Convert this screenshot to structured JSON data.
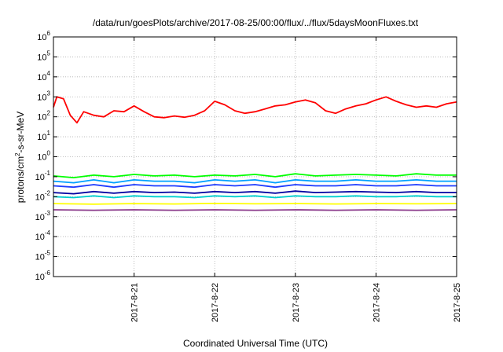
{
  "chart_data": {
    "type": "line",
    "title": "/data/run/goesPlots/archive/2017-08-25/00:00/flux/../flux/5daysMoonFluxes.txt",
    "xlabel": "Coordinated Universal Time (UTC)",
    "ylabel": {
      "prefix": "protons/cm",
      "superscript": "2",
      "suffix": "-s-sr-MeV"
    },
    "y_scale": "log",
    "y_range": [
      1e-06,
      1000000.0
    ],
    "y_ticks": [
      {
        "base": "10",
        "exp": "-6",
        "value": 1e-06
      },
      {
        "base": "10",
        "exp": "-5",
        "value": 1e-05
      },
      {
        "base": "10",
        "exp": "-4",
        "value": 0.0001
      },
      {
        "base": "10",
        "exp": "-3",
        "value": 0.001
      },
      {
        "base": "10",
        "exp": "-2",
        "value": 0.01
      },
      {
        "base": "10",
        "exp": "-1",
        "value": 0.1
      },
      {
        "base": "10",
        "exp": "0",
        "value": 1
      },
      {
        "base": "10",
        "exp": "1",
        "value": 10
      },
      {
        "base": "10",
        "exp": "2",
        "value": 100
      },
      {
        "base": "10",
        "exp": "3",
        "value": 1000
      },
      {
        "base": "10",
        "exp": "4",
        "value": 10000
      },
      {
        "base": "10",
        "exp": "5",
        "value": 100000
      },
      {
        "base": "10",
        "exp": "6",
        "value": 1000000
      }
    ],
    "x_range": [
      "2017-08-20",
      "2017-08-25"
    ],
    "x_ticks": [
      "2017-8-21",
      "2017-8-22",
      "2017-8-23",
      "2017-8-24",
      "2017-8-25"
    ],
    "x_tick_dates": [
      "2017-08-21",
      "2017-08-22",
      "2017-08-23",
      "2017-08-24",
      "2017-08-25"
    ],
    "grid": true,
    "series": [
      {
        "color": "#ff0000",
        "x": [
          "2017-08-20 00:00",
          "2017-08-20 01:00",
          "2017-08-20 03:00",
          "2017-08-20 05:00",
          "2017-08-20 07:00",
          "2017-08-20 09:00",
          "2017-08-20 12:00",
          "2017-08-20 15:00",
          "2017-08-20 18:00",
          "2017-08-20 21:00",
          "2017-08-21 00:00",
          "2017-08-21 03:00",
          "2017-08-21 06:00",
          "2017-08-21 09:00",
          "2017-08-21 12:00",
          "2017-08-21 15:00",
          "2017-08-21 18:00",
          "2017-08-21 21:00",
          "2017-08-22 00:00",
          "2017-08-22 03:00",
          "2017-08-22 06:00",
          "2017-08-22 09:00",
          "2017-08-22 12:00",
          "2017-08-22 15:00",
          "2017-08-22 18:00",
          "2017-08-22 21:00",
          "2017-08-23 00:00",
          "2017-08-23 03:00",
          "2017-08-23 06:00",
          "2017-08-23 09:00",
          "2017-08-23 12:00",
          "2017-08-23 15:00",
          "2017-08-23 18:00",
          "2017-08-23 21:00",
          "2017-08-24 00:00",
          "2017-08-24 03:00",
          "2017-08-24 06:00",
          "2017-08-24 09:00",
          "2017-08-24 12:00",
          "2017-08-24 15:00",
          "2017-08-24 18:00",
          "2017-08-24 21:00",
          "2017-08-25 00:00"
        ],
        "y": [
          300,
          1000,
          800,
          120,
          50,
          180,
          120,
          100,
          200,
          180,
          350,
          180,
          100,
          90,
          110,
          95,
          120,
          200,
          600,
          400,
          200,
          150,
          180,
          250,
          350,
          400,
          550,
          700,
          500,
          200,
          150,
          250,
          350,
          450,
          700,
          1000,
          600,
          400,
          300,
          350,
          300,
          450,
          550
        ]
      },
      {
        "color": "#00ff00",
        "x": [
          "2017-08-20 00:00",
          "2017-08-20 06:00",
          "2017-08-20 12:00",
          "2017-08-20 18:00",
          "2017-08-21 00:00",
          "2017-08-21 06:00",
          "2017-08-21 12:00",
          "2017-08-21 18:00",
          "2017-08-22 00:00",
          "2017-08-22 06:00",
          "2017-08-22 12:00",
          "2017-08-22 18:00",
          "2017-08-23 00:00",
          "2017-08-23 06:00",
          "2017-08-23 12:00",
          "2017-08-23 18:00",
          "2017-08-24 00:00",
          "2017-08-24 06:00",
          "2017-08-24 12:00",
          "2017-08-24 18:00",
          "2017-08-25 00:00"
        ],
        "y": [
          0.11,
          0.09,
          0.12,
          0.1,
          0.13,
          0.11,
          0.12,
          0.1,
          0.12,
          0.11,
          0.13,
          0.1,
          0.14,
          0.11,
          0.12,
          0.13,
          0.12,
          0.11,
          0.14,
          0.12,
          0.12
        ]
      },
      {
        "color": "#00a0ff",
        "x": [
          "2017-08-20 00:00",
          "2017-08-20 06:00",
          "2017-08-20 12:00",
          "2017-08-20 18:00",
          "2017-08-21 00:00",
          "2017-08-21 06:00",
          "2017-08-21 12:00",
          "2017-08-21 18:00",
          "2017-08-22 00:00",
          "2017-08-22 06:00",
          "2017-08-22 12:00",
          "2017-08-22 18:00",
          "2017-08-23 00:00",
          "2017-08-23 06:00",
          "2017-08-23 12:00",
          "2017-08-23 18:00",
          "2017-08-24 00:00",
          "2017-08-24 06:00",
          "2017-08-24 12:00",
          "2017-08-24 18:00",
          "2017-08-25 00:00"
        ],
        "y": [
          0.06,
          0.05,
          0.07,
          0.05,
          0.07,
          0.06,
          0.06,
          0.05,
          0.07,
          0.06,
          0.07,
          0.05,
          0.07,
          0.06,
          0.06,
          0.07,
          0.06,
          0.06,
          0.07,
          0.06,
          0.06
        ]
      },
      {
        "color": "#1e3cff",
        "x": [
          "2017-08-20 00:00",
          "2017-08-20 06:00",
          "2017-08-20 12:00",
          "2017-08-20 18:00",
          "2017-08-21 00:00",
          "2017-08-21 06:00",
          "2017-08-21 12:00",
          "2017-08-21 18:00",
          "2017-08-22 00:00",
          "2017-08-22 06:00",
          "2017-08-22 12:00",
          "2017-08-22 18:00",
          "2017-08-23 00:00",
          "2017-08-23 06:00",
          "2017-08-23 12:00",
          "2017-08-23 18:00",
          "2017-08-24 00:00",
          "2017-08-24 06:00",
          "2017-08-24 12:00",
          "2017-08-24 18:00",
          "2017-08-25 00:00"
        ],
        "y": [
          0.035,
          0.03,
          0.04,
          0.03,
          0.04,
          0.035,
          0.035,
          0.03,
          0.04,
          0.035,
          0.04,
          0.03,
          0.04,
          0.035,
          0.035,
          0.04,
          0.035,
          0.035,
          0.04,
          0.035,
          0.035
        ]
      },
      {
        "color": "#0000a0",
        "x": [
          "2017-08-20 00:00",
          "2017-08-20 06:00",
          "2017-08-20 12:00",
          "2017-08-20 18:00",
          "2017-08-21 00:00",
          "2017-08-21 06:00",
          "2017-08-21 12:00",
          "2017-08-21 18:00",
          "2017-08-22 00:00",
          "2017-08-22 06:00",
          "2017-08-22 12:00",
          "2017-08-22 18:00",
          "2017-08-23 00:00",
          "2017-08-23 06:00",
          "2017-08-23 12:00",
          "2017-08-23 18:00",
          "2017-08-24 00:00",
          "2017-08-24 06:00",
          "2017-08-24 12:00",
          "2017-08-24 18:00",
          "2017-08-25 00:00"
        ],
        "y": [
          0.016,
          0.014,
          0.018,
          0.015,
          0.018,
          0.016,
          0.017,
          0.015,
          0.018,
          0.016,
          0.018,
          0.015,
          0.019,
          0.016,
          0.017,
          0.018,
          0.017,
          0.016,
          0.018,
          0.016,
          0.016
        ]
      },
      {
        "color": "#00d0d0",
        "x": [
          "2017-08-20 00:00",
          "2017-08-20 06:00",
          "2017-08-20 12:00",
          "2017-08-20 18:00",
          "2017-08-21 00:00",
          "2017-08-21 06:00",
          "2017-08-21 12:00",
          "2017-08-21 18:00",
          "2017-08-22 00:00",
          "2017-08-22 06:00",
          "2017-08-22 12:00",
          "2017-08-22 18:00",
          "2017-08-23 00:00",
          "2017-08-23 06:00",
          "2017-08-23 12:00",
          "2017-08-23 18:00",
          "2017-08-24 00:00",
          "2017-08-24 06:00",
          "2017-08-24 12:00",
          "2017-08-24 18:00",
          "2017-08-25 00:00"
        ],
        "y": [
          0.01,
          0.009,
          0.011,
          0.009,
          0.011,
          0.01,
          0.01,
          0.009,
          0.011,
          0.01,
          0.011,
          0.009,
          0.011,
          0.01,
          0.01,
          0.011,
          0.01,
          0.01,
          0.011,
          0.01,
          0.01
        ]
      },
      {
        "color": "#ffff00",
        "x": [
          "2017-08-20 00:00",
          "2017-08-20 12:00",
          "2017-08-21 00:00",
          "2017-08-21 12:00",
          "2017-08-22 00:00",
          "2017-08-22 12:00",
          "2017-08-23 00:00",
          "2017-08-23 12:00",
          "2017-08-24 00:00",
          "2017-08-24 12:00",
          "2017-08-25 00:00"
        ],
        "y": [
          0.0045,
          0.0042,
          0.0045,
          0.0043,
          0.0046,
          0.0044,
          0.0045,
          0.0043,
          0.0045,
          0.0044,
          0.0045
        ]
      },
      {
        "color": "#8b3a8b",
        "x": [
          "2017-08-20 00:00",
          "2017-08-20 12:00",
          "2017-08-21 00:00",
          "2017-08-21 12:00",
          "2017-08-22 00:00",
          "2017-08-22 12:00",
          "2017-08-23 00:00",
          "2017-08-23 12:00",
          "2017-08-24 00:00",
          "2017-08-24 12:00",
          "2017-08-25 00:00"
        ],
        "y": [
          0.0022,
          0.0021,
          0.0022,
          0.0021,
          0.0022,
          0.0021,
          0.0022,
          0.0021,
          0.0022,
          0.0021,
          0.0022
        ]
      }
    ]
  }
}
